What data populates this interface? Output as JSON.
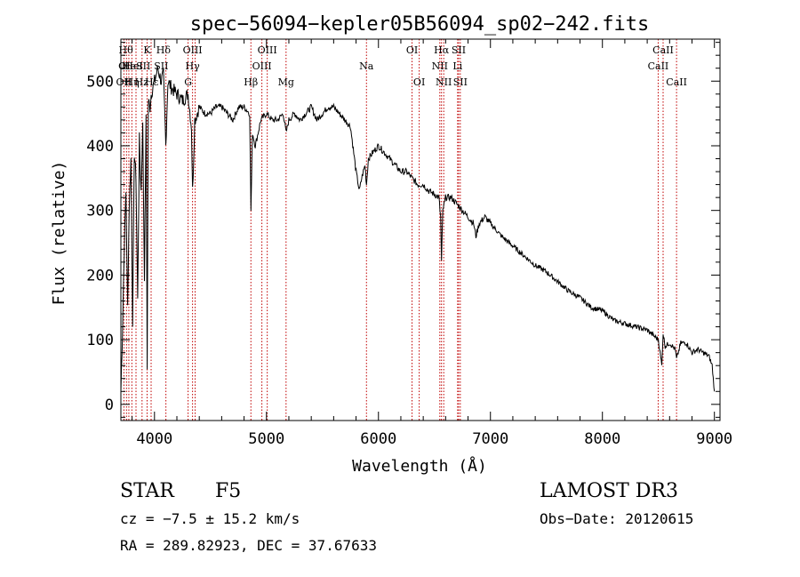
{
  "chart_data": {
    "type": "line",
    "title": "spec−56094−kepler05B56094_sp02−242.fits",
    "xlabel": "Wavelength (Å)",
    "ylabel": "Flux (relative)",
    "xlim": [
      3700,
      9050
    ],
    "ylim": [
      -25,
      565
    ],
    "xticks": [
      4000,
      5000,
      6000,
      7000,
      8000,
      9000
    ],
    "yticks": [
      0,
      100,
      200,
      300,
      400,
      500
    ],
    "grid": false,
    "series": [
      {
        "name": "flux",
        "x": [
          3700,
          3715,
          3730,
          3745,
          3760,
          3775,
          3790,
          3805,
          3820,
          3835,
          3850,
          3865,
          3880,
          3895,
          3910,
          3925,
          3935,
          3945,
          3960,
          3970,
          3985,
          4000,
          4030,
          4060,
          4080,
          4101,
          4120,
          4150,
          4200,
          4250,
          4300,
          4330,
          4340,
          4360,
          4400,
          4450,
          4500,
          4550,
          4600,
          4650,
          4700,
          4750,
          4800,
          4850,
          4861,
          4875,
          4900,
          4950,
          5000,
          5050,
          5100,
          5150,
          5175,
          5200,
          5250,
          5300,
          5350,
          5400,
          5450,
          5500,
          5550,
          5600,
          5650,
          5700,
          5750,
          5800,
          5830,
          5850,
          5880,
          5893,
          5910,
          5950,
          6000,
          6050,
          6100,
          6150,
          6200,
          6250,
          6300,
          6350,
          6400,
          6450,
          6500,
          6540,
          6555,
          6563,
          6575,
          6600,
          6650,
          6700,
          6750,
          6800,
          6850,
          6870,
          6900,
          6950,
          7000,
          7100,
          7200,
          7300,
          7400,
          7500,
          7600,
          7700,
          7800,
          7900,
          8000,
          8100,
          8200,
          8300,
          8400,
          8500,
          8530,
          8542,
          8560,
          8600,
          8650,
          8662,
          8700,
          8750,
          8800,
          8850,
          8900,
          8950,
          8980,
          9000
        ],
        "values": [
          20,
          120,
          240,
          330,
          150,
          310,
          380,
          130,
          390,
          350,
          160,
          410,
          330,
          430,
          200,
          440,
          60,
          470,
          460,
          480,
          490,
          500,
          520,
          500,
          510,
          400,
          500,
          490,
          480,
          470,
          480,
          430,
          330,
          440,
          460,
          450,
          450,
          460,
          460,
          450,
          440,
          460,
          460,
          450,
          300,
          420,
          400,
          440,
          450,
          440,
          440,
          450,
          420,
          440,
          450,
          440,
          450,
          460,
          440,
          450,
          460,
          460,
          450,
          440,
          430,
          360,
          330,
          350,
          370,
          340,
          380,
          390,
          400,
          390,
          380,
          370,
          360,
          360,
          350,
          340,
          340,
          330,
          325,
          320,
          290,
          220,
          300,
          320,
          320,
          310,
          300,
          290,
          280,
          260,
          280,
          290,
          280,
          260,
          245,
          230,
          215,
          205,
          190,
          175,
          165,
          150,
          145,
          130,
          125,
          120,
          115,
          100,
          60,
          110,
          90,
          95,
          85,
          70,
          95,
          95,
          80,
          85,
          80,
          75,
          60,
          20
        ]
      }
    ],
    "lines": [
      {
        "wl": 3727,
        "label": "OII",
        "row": 2
      },
      {
        "wl": 3750,
        "label": "",
        "row": 0
      },
      {
        "wl": 3771,
        "label": "",
        "row": 0
      },
      {
        "wl": 3798,
        "label": "",
        "row": 0
      },
      {
        "wl": 3835,
        "label": "",
        "row": 0
      },
      {
        "wl": 3889,
        "label": "",
        "row": 0
      },
      {
        "wl": 3934,
        "label": "",
        "row": 0
      },
      {
        "wl": 3970,
        "label": "",
        "row": 0
      },
      {
        "wl": 4102,
        "label": "",
        "row": 0
      },
      {
        "wl": 4300,
        "label": "",
        "row": 0
      },
      {
        "wl": 4340,
        "label": "",
        "row": 0
      },
      {
        "wl": 4363,
        "label": "",
        "row": 0
      },
      {
        "wl": 4861,
        "label": "Hβ",
        "row": 2
      },
      {
        "wl": 4959,
        "label": "OIII",
        "row": 1
      },
      {
        "wl": 5007,
        "label": "",
        "row": 0
      },
      {
        "wl": 5175,
        "label": "Mg",
        "row": 2
      },
      {
        "wl": 5893,
        "label": "Na",
        "row": 1
      },
      {
        "wl": 6300,
        "label": "OI",
        "row": 0
      },
      {
        "wl": 6364,
        "label": "OI",
        "row": 2
      },
      {
        "wl": 6548,
        "label": "NII",
        "row": 1
      },
      {
        "wl": 6563,
        "label": "Hα",
        "row": 0
      },
      {
        "wl": 6583,
        "label": "NII",
        "row": 2
      },
      {
        "wl": 6707,
        "label": "Li",
        "row": 1
      },
      {
        "wl": 6716,
        "label": "SII",
        "row": 0
      },
      {
        "wl": 6731,
        "label": "SII",
        "row": 2
      },
      {
        "wl": 8498,
        "label": "CaII",
        "row": 1
      },
      {
        "wl": 8542,
        "label": "CaII",
        "row": 0
      },
      {
        "wl": 8662,
        "label": "CaII",
        "row": 2
      }
    ],
    "extra_labels": [
      {
        "wl": 3745,
        "label": "Hθ",
        "row": 0
      },
      {
        "wl": 3730,
        "label": "OI",
        "row": 1
      },
      {
        "wl": 3770,
        "label": "He",
        "row": 1
      },
      {
        "wl": 3800,
        "label": "Hη",
        "row": 2
      },
      {
        "wl": 3815,
        "label": "HeI",
        "row": 1
      },
      {
        "wl": 3934,
        "label": "K",
        "row": 0
      },
      {
        "wl": 3900,
        "label": "SII",
        "row": 1
      },
      {
        "wl": 3885,
        "label": "Hz",
        "row": 2
      },
      {
        "wl": 3975,
        "label": "Hε",
        "row": 2
      },
      {
        "wl": 4080,
        "label": "Hδ",
        "row": 0
      },
      {
        "wl": 4060,
        "label": "SII",
        "row": 1
      },
      {
        "wl": 4340,
        "label": "OIII",
        "row": 0
      },
      {
        "wl": 4340,
        "label": "Hγ",
        "row": 1
      },
      {
        "wl": 4300,
        "label": "G",
        "row": 2
      },
      {
        "wl": 5007,
        "label": "OIII",
        "row": 0
      }
    ]
  },
  "info": {
    "object_class": "STAR",
    "subclass": "F5",
    "survey": "LAMOST DR3",
    "cz": "cz = −7.5 ± 15.2 km/s",
    "obs_date": "Obs−Date: 20120615",
    "coords": "RA = 289.82923, DEC =  37.67633"
  }
}
